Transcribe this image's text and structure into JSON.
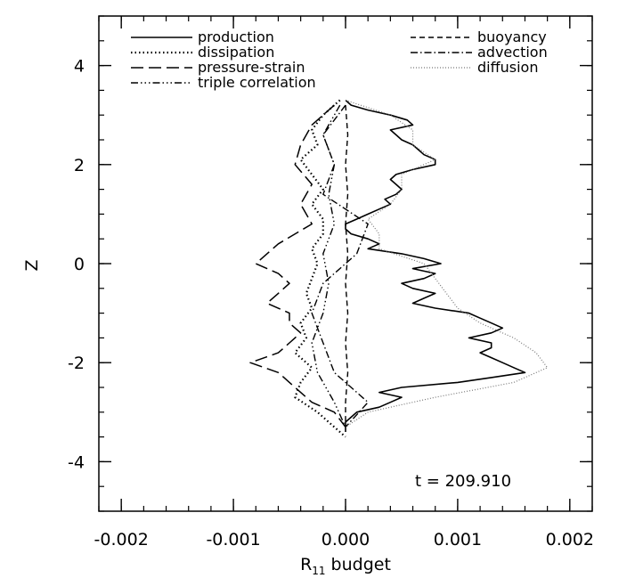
{
  "chart_data": {
    "type": "line",
    "xlabel": "R",
    "xlabel_subscript": "11",
    "xlabel_suffix": "budget",
    "ylabel": "Z",
    "xlim": [
      -0.0022,
      0.0022
    ],
    "ylim": [
      -5,
      5
    ],
    "xticks": [
      -0.002,
      -0.001,
      0.0,
      0.001,
      0.002
    ],
    "xtick_labels": [
      "-0.002",
      "-0.001",
      "0.000",
      "0.001",
      "0.002"
    ],
    "yticks": [
      -4,
      -2,
      0,
      2,
      4
    ],
    "ytick_labels": [
      "-4",
      "-2",
      "0",
      "2",
      "4"
    ],
    "annotation": "t = 209.910",
    "legend_placement": "top",
    "grid": false,
    "series": [
      {
        "name": "production",
        "style": "solid",
        "y": [
          3.3,
          3.2,
          3.1,
          3.0,
          2.9,
          2.8,
          2.7,
          2.6,
          2.5,
          2.4,
          2.3,
          2.2,
          2.1,
          2.0,
          1.9,
          1.8,
          1.7,
          1.6,
          1.5,
          1.4,
          1.3,
          1.2,
          1.1,
          1.0,
          0.9,
          0.8,
          0.7,
          0.6,
          0.5,
          0.4,
          0.3,
          0.2,
          0.1,
          0.0,
          -0.1,
          -0.2,
          -0.3,
          -0.4,
          -0.5,
          -0.6,
          -0.7,
          -0.8,
          -0.9,
          -1.0,
          -1.1,
          -1.2,
          -1.3,
          -1.4,
          -1.5,
          -1.6,
          -1.7,
          -1.8,
          -1.9,
          -2.0,
          -2.1,
          -2.2,
          -2.3,
          -2.4,
          -2.5,
          -2.6,
          -2.7,
          -2.8,
          -2.9,
          -3.0,
          -3.1,
          -3.2,
          -3.4
        ],
        "x": [
          0.0,
          5e-05,
          0.0002,
          0.0004,
          0.00055,
          0.0006,
          0.0004,
          0.00045,
          0.0005,
          0.0006,
          0.00065,
          0.0007,
          0.0008,
          0.0008,
          0.0006,
          0.00045,
          0.0004,
          0.00045,
          0.0005,
          0.00045,
          0.00035,
          0.0004,
          0.0003,
          0.0002,
          0.0001,
          0.0,
          0.0,
          5e-05,
          0.0002,
          0.0003,
          0.0002,
          0.0005,
          0.0007,
          0.00085,
          0.0006,
          0.0008,
          0.0007,
          0.0005,
          0.0006,
          0.0008,
          0.0007,
          0.0006,
          0.0008,
          0.0011,
          0.0012,
          0.0013,
          0.0014,
          0.0013,
          0.0011,
          0.0013,
          0.0013,
          0.0012,
          0.0013,
          0.0014,
          0.0015,
          0.0016,
          0.0013,
          0.001,
          0.0005,
          0.0003,
          0.0005,
          0.0004,
          0.0003,
          0.0001,
          5e-05,
          0.0,
          0.0
        ]
      },
      {
        "name": "dissipation",
        "style": "dotted",
        "y": [
          3.3,
          3.0,
          2.7,
          2.4,
          2.1,
          1.8,
          1.5,
          1.2,
          0.9,
          0.6,
          0.3,
          0.0,
          -0.3,
          -0.6,
          -0.9,
          -1.2,
          -1.5,
          -1.8,
          -2.1,
          -2.4,
          -2.7,
          -3.0,
          -3.3,
          -3.5
        ],
        "x": [
          -5e-05,
          -0.0002,
          -0.0003,
          -0.00025,
          -0.0004,
          -0.0003,
          -0.0002,
          -0.0003,
          -0.0002,
          -0.0002,
          -0.0003,
          -0.00025,
          -0.0003,
          -0.00035,
          -0.0003,
          -0.0004,
          -0.00035,
          -0.00045,
          -0.0003,
          -0.0004,
          -0.00045,
          -0.00025,
          -0.0001,
          0.0
        ]
      },
      {
        "name": "pressure-strain",
        "style": "longdash",
        "y": [
          3.2,
          2.8,
          2.4,
          2.0,
          1.6,
          1.2,
          0.8,
          0.4,
          0.0,
          -0.2,
          -0.4,
          -0.6,
          -0.8,
          -1.0,
          -1.2,
          -1.4,
          -1.6,
          -1.8,
          -2.0,
          -2.2,
          -2.4,
          -2.6,
          -2.8,
          -3.0,
          -3.3
        ],
        "x": [
          -0.0001,
          -0.0003,
          -0.0004,
          -0.00045,
          -0.0003,
          -0.0004,
          -0.0003,
          -0.0006,
          -0.0008,
          -0.0006,
          -0.0005,
          -0.0006,
          -0.0007,
          -0.0005,
          -0.0005,
          -0.0004,
          -0.0005,
          -0.0006,
          -0.00085,
          -0.0006,
          -0.0005,
          -0.0004,
          -0.0003,
          -0.0001,
          0.0
        ]
      },
      {
        "name": "triple correlation",
        "style": "dashdotdotdot",
        "y": [
          3.2,
          2.6,
          2.0,
          1.4,
          0.8,
          0.2,
          -0.4,
          -1.0,
          -1.6,
          -2.2,
          -2.8,
          -3.3
        ],
        "x": [
          -5e-05,
          -0.0002,
          -0.0001,
          -0.00015,
          -0.0001,
          -0.0002,
          -0.00015,
          -0.0002,
          -0.0003,
          -0.00025,
          -0.0001,
          0.0
        ]
      },
      {
        "name": "buoyancy",
        "style": "shortdash",
        "y": [
          3.2,
          2.6,
          2.0,
          1.4,
          0.8,
          0.2,
          -0.4,
          -1.0,
          -1.6,
          -2.2,
          -2.8,
          -3.3
        ],
        "x": [
          0.0,
          2e-05,
          0.0,
          2e-05,
          0.0,
          2e-05,
          0.0,
          2e-05,
          0.0,
          2e-05,
          0.0,
          0.0
        ]
      },
      {
        "name": "advection",
        "style": "dashdot",
        "y": [
          3.2,
          2.6,
          2.0,
          1.4,
          0.8,
          0.2,
          -0.4,
          -1.0,
          -1.6,
          -2.2,
          -2.8,
          -3.3
        ],
        "x": [
          0.0,
          -0.0002,
          -0.0001,
          -0.0002,
          0.0002,
          0.0001,
          -0.0002,
          -0.0003,
          -0.0002,
          -0.0001,
          0.0002,
          0.0
        ]
      },
      {
        "name": "diffusion",
        "style": "finedot",
        "y": [
          3.3,
          3.0,
          2.7,
          2.4,
          2.1,
          1.8,
          1.5,
          1.2,
          0.9,
          0.6,
          0.3,
          0.0,
          -0.3,
          -0.6,
          -0.9,
          -1.2,
          -1.5,
          -1.8,
          -2.1,
          -2.4,
          -2.7,
          -3.0,
          -3.3
        ],
        "x": [
          0.0,
          0.0004,
          0.0006,
          0.0006,
          0.0008,
          0.0005,
          0.0005,
          0.0004,
          0.0002,
          0.0003,
          0.0003,
          0.0007,
          0.0008,
          0.0009,
          0.001,
          0.0012,
          0.0015,
          0.0017,
          0.0018,
          0.0015,
          0.0008,
          0.0002,
          0.0
        ]
      }
    ]
  }
}
